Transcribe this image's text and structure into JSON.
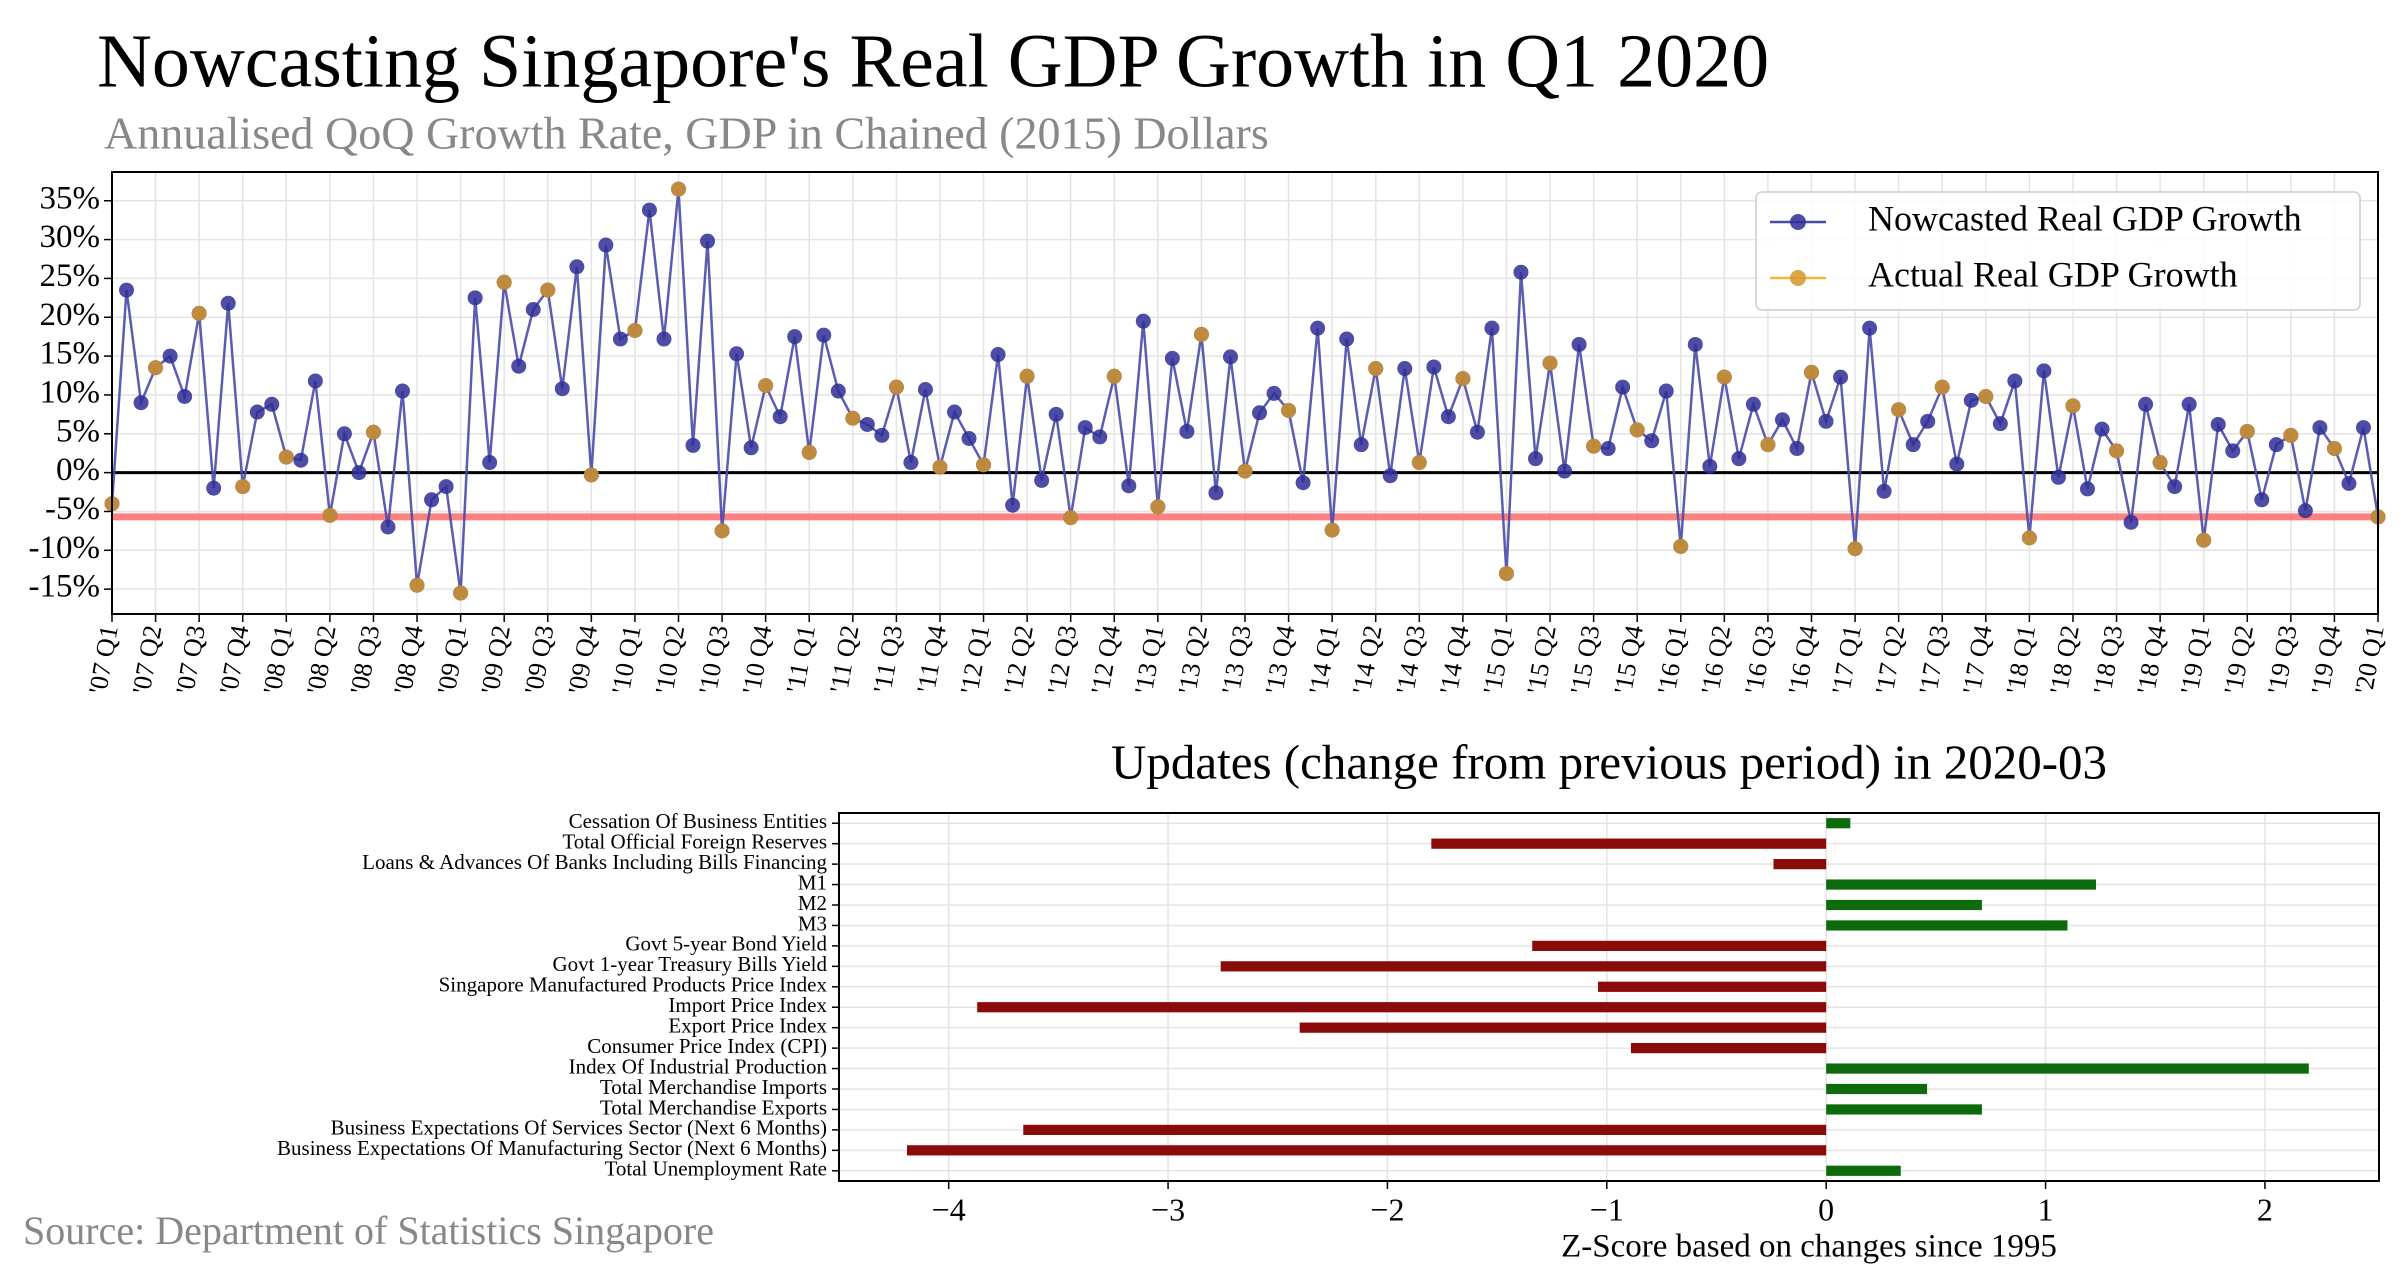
{
  "source": "Source: Department of Statistics Singapore",
  "chart_data": [
    {
      "type": "line",
      "title": "Nowcasting Singapore's Real GDP Growth in Q1 2020",
      "subtitle": "Annualised QoQ Growth Rate, GDP in Chained (2015) Dollars",
      "categories": [
        "'07 Q1",
        null,
        null,
        "'07 Q2",
        null,
        null,
        "'07 Q3",
        null,
        null,
        "'07 Q4",
        null,
        null,
        "'08 Q1",
        null,
        null,
        "'08 Q2",
        null,
        null,
        "'08 Q3",
        null,
        null,
        "'08 Q4",
        null,
        null,
        "'09 Q1",
        null,
        null,
        "'09 Q2",
        null,
        null,
        "'09 Q3",
        null,
        null,
        "'09 Q4",
        null,
        null,
        "'10 Q1",
        null,
        null,
        "'10 Q2",
        null,
        null,
        "'10 Q3",
        null,
        null,
        "'10 Q4",
        null,
        null,
        "'11 Q1",
        null,
        null,
        "'11 Q2",
        null,
        null,
        "'11 Q3",
        null,
        null,
        "'11 Q4",
        null,
        null,
        "'12 Q1",
        null,
        null,
        "'12 Q2",
        null,
        null,
        "'12 Q3",
        null,
        null,
        "'12 Q4",
        null,
        null,
        "'13 Q1",
        null,
        null,
        "'13 Q2",
        null,
        null,
        "'13 Q3",
        null,
        null,
        "'13 Q4",
        null,
        null,
        "'14 Q1",
        null,
        null,
        "'14 Q2",
        null,
        null,
        "'14 Q3",
        null,
        null,
        "'14 Q4",
        null,
        null,
        "'15 Q1",
        null,
        null,
        "'15 Q2",
        null,
        null,
        "'15 Q3",
        null,
        null,
        "'15 Q4",
        null,
        null,
        "'16 Q1",
        null,
        null,
        "'16 Q2",
        null,
        null,
        "'16 Q3",
        null,
        null,
        "'16 Q4",
        null,
        null,
        "'17 Q1",
        null,
        null,
        "'17 Q2",
        null,
        null,
        "'17 Q3",
        null,
        null,
        "'17 Q4",
        null,
        null,
        "'18 Q1",
        null,
        null,
        "'18 Q2",
        null,
        null,
        "'18 Q3",
        null,
        null,
        "'18 Q4",
        null,
        null,
        "'19 Q1",
        null,
        null,
        "'19 Q2",
        null,
        null,
        "'19 Q3",
        null,
        null,
        "'19 Q4",
        null,
        null,
        "'20 Q1"
      ],
      "series": [
        {
          "name": "Nowcasted Real GDP Growth",
          "color": "#4a4aa8",
          "marker_color": "#2e2e96",
          "values": [
            -4,
            23.5,
            9,
            13.5,
            15,
            9.8,
            20.5,
            -2,
            21.8,
            -1.8,
            7.8,
            8.8,
            2,
            1.6,
            11.8,
            -5.5,
            5,
            0,
            5.2,
            -7,
            10.5,
            -14.5,
            -3.5,
            -1.8,
            -15.5,
            22.5,
            1.3,
            24.5,
            13.7,
            21,
            23.5,
            10.8,
            26.5,
            -0.3,
            29.3,
            17.2,
            18.3,
            33.8,
            17.2,
            36.5,
            3.5,
            29.8,
            -7.5,
            15.3,
            3.2,
            11.2,
            7.2,
            17.5,
            2.6,
            17.7,
            10.5,
            7,
            6.2,
            4.8,
            11,
            1.3,
            10.7,
            0.7,
            7.8,
            4.4,
            1,
            15.2,
            -4.2,
            12.4,
            -1,
            7.5,
            -5.8,
            5.8,
            4.6,
            12.4,
            -1.7,
            19.5,
            -4.4,
            14.7,
            5.3,
            17.8,
            -2.6,
            14.9,
            0.2,
            7.7,
            10.2,
            8,
            -1.3,
            18.6,
            -7.4,
            17.2,
            3.6,
            13.4,
            -0.4,
            13.4,
            1.3,
            13.6,
            7.2,
            12.1,
            5.2,
            18.6,
            -13,
            25.8,
            1.8,
            14.1,
            0.2,
            16.5,
            3.4,
            3.1,
            11,
            5.5,
            4.1,
            10.5,
            -9.5,
            16.5,
            0.8,
            12.3,
            1.8,
            8.8,
            3.6,
            6.8,
            3.1,
            12.9,
            6.6,
            12.3,
            -9.8,
            18.6,
            -2.4,
            8.1,
            3.6,
            6.6,
            11,
            1.1,
            9.3,
            9.8,
            6.3,
            11.8,
            -8.4,
            13.1,
            -0.6,
            8.6,
            -2.1,
            5.6,
            2.8,
            -6.4,
            8.8,
            1.3,
            -1.8,
            8.8,
            -8.7,
            6.2,
            2.8,
            5.3,
            -3.5,
            3.6,
            4.8,
            -4.9,
            5.8,
            3.1,
            -1.4,
            5.8,
            -5.7
          ]
        },
        {
          "name": "Actual Real GDP Growth",
          "color": "#f5b43c",
          "marker_color": "#d4962c",
          "values": [
            -4,
            null,
            null,
            13.5,
            null,
            null,
            20.5,
            null,
            null,
            -1.8,
            null,
            null,
            2,
            null,
            null,
            -5.5,
            null,
            null,
            5.2,
            null,
            null,
            -14.5,
            null,
            null,
            -15.5,
            null,
            null,
            24.5,
            null,
            null,
            23.5,
            null,
            null,
            -0.3,
            null,
            null,
            18.3,
            null,
            null,
            36.5,
            null,
            null,
            -7.5,
            null,
            null,
            11.2,
            null,
            null,
            2.6,
            null,
            null,
            7,
            null,
            null,
            11,
            null,
            null,
            0.7,
            null,
            null,
            1,
            null,
            null,
            12.4,
            null,
            null,
            -5.8,
            null,
            null,
            12.4,
            null,
            null,
            -4.4,
            null,
            null,
            17.8,
            null,
            null,
            0.2,
            null,
            null,
            8,
            null,
            null,
            -7.4,
            null,
            null,
            13.4,
            null,
            null,
            1.3,
            null,
            null,
            12.1,
            null,
            null,
            -13,
            null,
            null,
            14.1,
            null,
            null,
            3.4,
            null,
            null,
            5.5,
            null,
            null,
            -9.5,
            null,
            null,
            12.3,
            null,
            null,
            3.6,
            null,
            null,
            12.9,
            null,
            null,
            -9.8,
            null,
            null,
            8.1,
            null,
            null,
            11,
            null,
            null,
            9.8,
            null,
            null,
            -8.4,
            null,
            null,
            8.6,
            null,
            null,
            2.8,
            null,
            null,
            1.3,
            null,
            null,
            -8.7,
            null,
            null,
            5.3,
            null,
            null,
            4.8,
            null,
            null,
            3.1,
            null,
            null,
            -5.7
          ]
        }
      ],
      "reference_line": {
        "value": -5.7,
        "color": "#ff6b6b"
      },
      "ylim": [
        -18.2,
        38.7
      ],
      "yticks": [
        {
          "value": -15,
          "label": "-15%"
        },
        {
          "value": -10,
          "label": "-10%"
        },
        {
          "value": -5,
          "label": "-5%"
        },
        {
          "value": 0,
          "label": "0%"
        },
        {
          "value": 5,
          "label": "5%"
        },
        {
          "value": 10,
          "label": "10%"
        },
        {
          "value": 15,
          "label": "15%"
        },
        {
          "value": 20,
          "label": "20%"
        },
        {
          "value": 25,
          "label": "25%"
        },
        {
          "value": 30,
          "label": "30%"
        },
        {
          "value": 35,
          "label": "35%"
        }
      ],
      "grid": true,
      "legend": "upper right"
    },
    {
      "type": "barh",
      "title": "Updates (change from previous period) in 2020-03",
      "xlabel": "Z-Score based on changes since 1995",
      "categories": [
        "Cessation Of Business Entities",
        "Total Official Foreign Reserves",
        "Loans & Advances Of Banks Including Bills Financing",
        "M1",
        "M2",
        "M3",
        "Govt 5-year Bond Yield",
        "Govt 1-year Treasury Bills Yield",
        "Singapore Manufactured Products Price Index",
        "Import Price Index",
        "Export Price Index",
        "Consumer Price Index (CPI)",
        "Index Of Industrial Production",
        "Total Merchandise Imports",
        "Total Merchandise Exports",
        "Business Expectations Of Services Sector (Next 6 Months)",
        "Business Expectations Of Manufacturing Sector (Next 6 Months)",
        "Total Unemployment Rate"
      ],
      "values": [
        0.11,
        -1.8,
        -0.24,
        1.23,
        0.71,
        1.1,
        -1.34,
        -2.76,
        -1.04,
        -3.87,
        -2.4,
        -0.89,
        2.2,
        0.46,
        0.71,
        -3.66,
        -4.19,
        0.34
      ],
      "positive_color": "#0d6b0d",
      "negative_color": "#8b0a0a",
      "xlim": [
        -4.5,
        2.52
      ],
      "xticks": [
        {
          "value": -4,
          "label": "−4"
        },
        {
          "value": -3,
          "label": "−3"
        },
        {
          "value": -2,
          "label": "−2"
        },
        {
          "value": -1,
          "label": "−1"
        },
        0,
        1,
        2
      ],
      "grid": true
    }
  ]
}
